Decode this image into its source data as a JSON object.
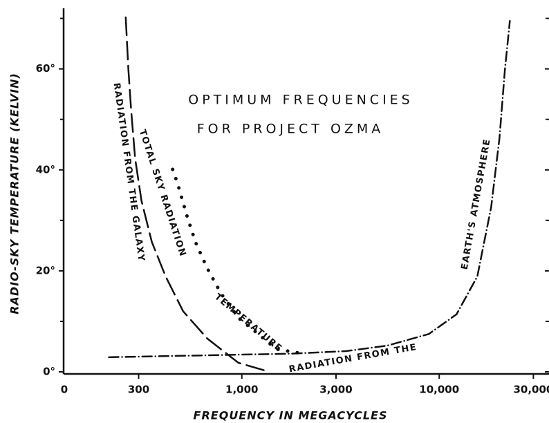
{
  "chart_data": {
    "type": "line",
    "title": "OPTIMUM FREQUENCIES",
    "subtitle": "FOR PROJECT OZMA",
    "x_label": "FREQUENCY IN MEGACYCLES",
    "y_label": "RADIO-SKY TEMPERATURE (KELVIN)",
    "x_log": true,
    "xlim": [
      125,
      36000
    ],
    "ylim": [
      0,
      72
    ],
    "x_origin_label": "0",
    "xticks": [
      300,
      {
        "value": 1000,
        "label": "1,000"
      },
      {
        "value": 3000,
        "label": "3,000"
      },
      {
        "value": 10000,
        "label": "10,000"
      },
      {
        "value": 30000,
        "label": "30,000"
      }
    ],
    "yticks": [
      {
        "value": 0,
        "label": "0°"
      },
      {
        "value": 20,
        "label": "20°"
      },
      {
        "value": 40,
        "label": "40°"
      },
      {
        "value": 60,
        "label": "60°"
      }
    ],
    "yticks_minor": [
      10,
      30,
      50,
      70
    ],
    "series": [
      {
        "name": "RADIATION FROM THE GALAXY",
        "color": "#111111",
        "style": "long-dash",
        "x": [
          258,
          266,
          275,
          288,
          310,
          350,
          411,
          504,
          668,
          960,
          1380
        ],
        "values": [
          70.2,
          60,
          51.7,
          42.2,
          33.9,
          25.7,
          18.9,
          12,
          6.6,
          1.8,
          0
        ]
      },
      {
        "name": "TOTAL SKY RADIATION TEMPERATURE",
        "color": "#111111",
        "style": "dotted",
        "x": [
          446,
          475,
          524,
          582,
          668,
          785,
          960,
          1175,
          1497,
          1909
        ],
        "values": [
          40.1,
          37,
          31.2,
          25.7,
          20.5,
          15.5,
          10.7,
          7.9,
          4.5,
          3.8
        ]
      },
      {
        "name": "RADIATION FROM THE EARTH'S ATMOSPHERE",
        "color": "#111111",
        "style": "dash-dot",
        "x": [
          212,
          1760,
          3360,
          5460,
          8860,
          12240,
          15600,
          18330,
          20200,
          21540,
          22800
        ],
        "values": [
          2.9,
          3.6,
          4.1,
          5.2,
          7.5,
          11.4,
          18.9,
          32.6,
          46.3,
          60,
          69.5
        ]
      }
    ],
    "annotations": [
      "RADIATION FROM THE GALAXY",
      "TOTAL SKY RADIATION",
      "TEMPERATURE",
      "RADIATION FROM THE",
      "EARTH'S ATMOSPHERE"
    ]
  }
}
